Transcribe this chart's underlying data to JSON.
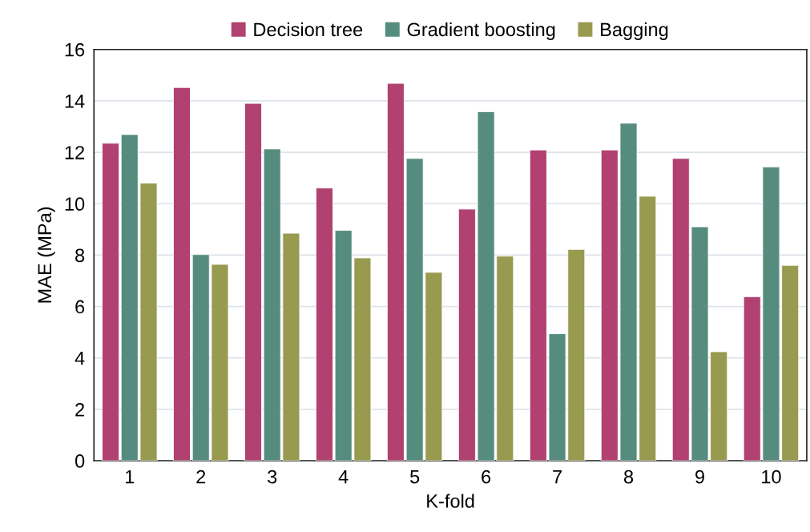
{
  "chart_data": {
    "type": "bar",
    "xlabel": "K-fold",
    "ylabel": "MAE (MPa)",
    "categories": [
      "1",
      "2",
      "3",
      "4",
      "5",
      "6",
      "7",
      "8",
      "9",
      "10"
    ],
    "series": [
      {
        "name": "Decision tree",
        "color": "#b04170",
        "values": [
          12.35,
          14.52,
          13.9,
          10.61,
          14.68,
          9.79,
          12.09,
          12.09,
          11.76,
          6.38
        ]
      },
      {
        "name": "Gradient boosting",
        "color": "#568c7e",
        "values": [
          12.69,
          8.02,
          12.13,
          8.96,
          11.76,
          13.58,
          4.94,
          13.13,
          9.1,
          11.43
        ]
      },
      {
        "name": "Bagging",
        "color": "#979a4f",
        "values": [
          10.8,
          7.64,
          8.85,
          7.89,
          7.33,
          7.96,
          8.22,
          10.29,
          4.24,
          7.6
        ]
      }
    ],
    "ylim": [
      0,
      16
    ],
    "yticks": [
      0,
      2,
      4,
      6,
      8,
      10,
      12,
      14,
      16
    ],
    "grid": "y",
    "legend": "top"
  }
}
